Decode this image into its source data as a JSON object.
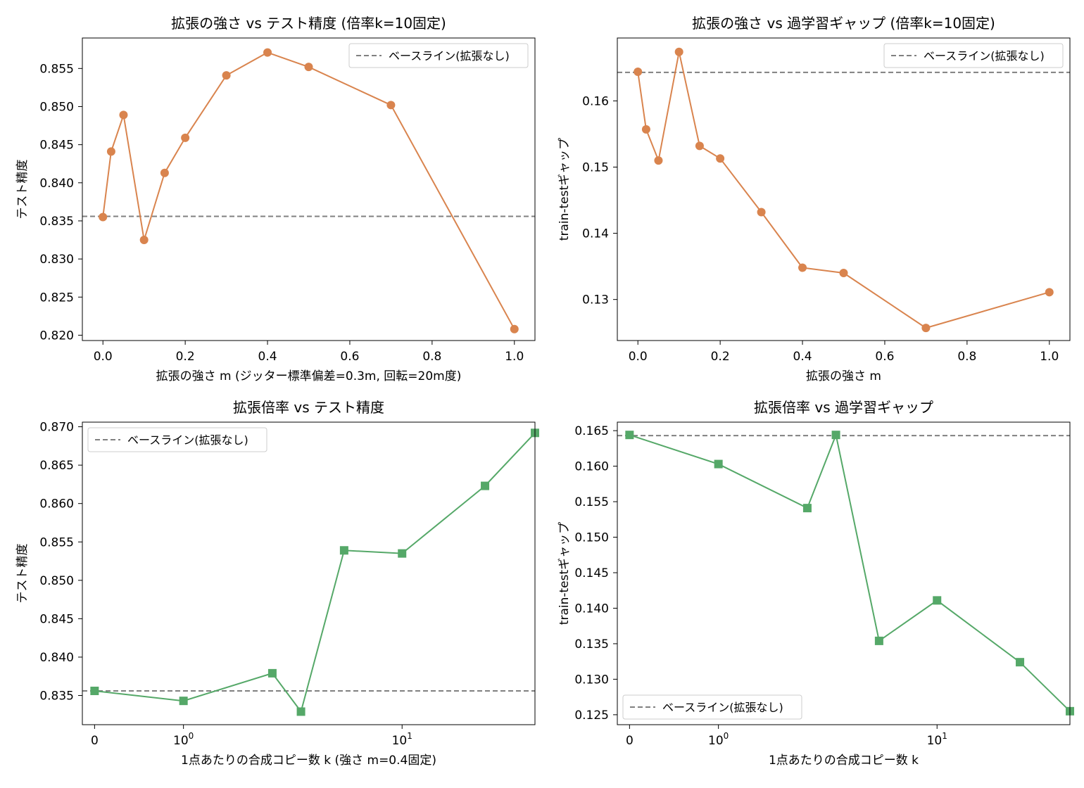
{
  "colors": {
    "orange": "#d9844e",
    "green": "#55a868",
    "baseline": "#808080"
  },
  "chart_data": [
    {
      "type": "line",
      "title": "拡張の強さ vs テスト精度 (倍率k=10固定)",
      "xlabel": "拡張の強さ m (ジッター標準偏差=0.3m, 回転=20m度)",
      "ylabel": "テスト精度",
      "x_scale": "linear",
      "xlim": [
        -0.05,
        1.05
      ],
      "ylim": [
        0.8193,
        0.859
      ],
      "xticks": [
        0.0,
        0.2,
        0.4,
        0.6,
        0.8,
        1.0
      ],
      "xtick_labels": [
        "0.0",
        "0.2",
        "0.4",
        "0.6",
        "0.8",
        "1.0"
      ],
      "yticks": [
        0.82,
        0.825,
        0.83,
        0.835,
        0.84,
        0.845,
        0.85,
        0.855
      ],
      "ytick_labels": [
        "0.820",
        "0.825",
        "0.830",
        "0.835",
        "0.840",
        "0.845",
        "0.850",
        "0.855"
      ],
      "marker": "circle",
      "color": "orange",
      "x": [
        0.0,
        0.02,
        0.05,
        0.1,
        0.15,
        0.2,
        0.3,
        0.4,
        0.5,
        0.7,
        1.0
      ],
      "y": [
        0.8355,
        0.8441,
        0.8489,
        0.8325,
        0.8413,
        0.8459,
        0.8541,
        0.8571,
        0.8552,
        0.8502,
        0.8208
      ],
      "baseline": {
        "label": "ベースライン(拡張なし)",
        "value": 0.8356
      },
      "legend": "top-right"
    },
    {
      "type": "line",
      "title": "拡張の強さ vs 過学習ギャップ (倍率k=10固定)",
      "xlabel": "拡張の強さ m",
      "ylabel": "train-testギャップ",
      "x_scale": "linear",
      "xlim": [
        -0.05,
        1.05
      ],
      "ylim": [
        0.1238,
        0.1695
      ],
      "xticks": [
        0.0,
        0.2,
        0.4,
        0.6,
        0.8,
        1.0
      ],
      "xtick_labels": [
        "0.0",
        "0.2",
        "0.4",
        "0.6",
        "0.8",
        "1.0"
      ],
      "yticks": [
        0.13,
        0.14,
        0.15,
        0.16
      ],
      "ytick_labels": [
        "0.13",
        "0.14",
        "0.15",
        "0.16"
      ],
      "marker": "circle",
      "color": "orange",
      "x": [
        0.0,
        0.02,
        0.05,
        0.1,
        0.15,
        0.2,
        0.3,
        0.4,
        0.5,
        0.7,
        1.0
      ],
      "y": [
        0.1644,
        0.1557,
        0.151,
        0.1674,
        0.1532,
        0.1513,
        0.1432,
        0.1348,
        0.134,
        0.1257,
        0.1311
      ],
      "baseline": {
        "label": "ベースライン(拡張なし)",
        "value": 0.1643
      },
      "legend": "top-right"
    },
    {
      "type": "line",
      "title": "拡張倍率 vs テスト精度",
      "xlabel": "1点あたりの合成コピー数 k (強さ m=0.4固定)",
      "ylabel": "テスト精度",
      "x_scale": "symlog",
      "xlim": [
        -0.1,
        30
      ],
      "ylim": [
        0.8312,
        0.8706
      ],
      "xticks": [
        0,
        1,
        10
      ],
      "xtick_labels": [
        [
          "0",
          ""
        ],
        [
          "10",
          "0"
        ],
        [
          "10",
          "1"
        ]
      ],
      "yticks": [
        0.835,
        0.84,
        0.845,
        0.85,
        0.855,
        0.86,
        0.865,
        0.87
      ],
      "ytick_labels": [
        "0.835",
        "0.840",
        "0.845",
        "0.850",
        "0.855",
        "0.860",
        "0.865",
        "0.870"
      ],
      "marker": "square",
      "color": "green",
      "x": [
        0,
        1,
        3,
        4,
        6,
        10,
        20,
        30
      ],
      "y": [
        0.8356,
        0.8343,
        0.8379,
        0.8329,
        0.8539,
        0.8535,
        0.8623,
        0.8692
      ],
      "baseline": {
        "label": "ベースライン(拡張なし)",
        "value": 0.8356
      },
      "legend": "top-left"
    },
    {
      "type": "line",
      "title": "拡張倍率 vs 過学習ギャップ",
      "xlabel": "1点あたりの合成コピー数 k",
      "ylabel": "train-testギャップ",
      "x_scale": "symlog",
      "xlim": [
        -0.1,
        30
      ],
      "ylim": [
        0.1236,
        0.1662
      ],
      "xticks": [
        0,
        1,
        10
      ],
      "xtick_labels": [
        [
          "0",
          ""
        ],
        [
          "10",
          "0"
        ],
        [
          "10",
          "1"
        ]
      ],
      "yticks": [
        0.125,
        0.13,
        0.135,
        0.14,
        0.145,
        0.15,
        0.155,
        0.16,
        0.165
      ],
      "ytick_labels": [
        "0.125",
        "0.130",
        "0.135",
        "0.140",
        "0.145",
        "0.150",
        "0.155",
        "0.160",
        "0.165"
      ],
      "marker": "square",
      "color": "green",
      "x": [
        0,
        1,
        3,
        4,
        6,
        10,
        20,
        30
      ],
      "y": [
        0.1644,
        0.1603,
        0.1541,
        0.1644,
        0.1354,
        0.1411,
        0.1324,
        0.1255
      ],
      "baseline": {
        "label": "ベースライン(拡張なし)",
        "value": 0.1643
      },
      "legend": "bottom-left"
    }
  ]
}
